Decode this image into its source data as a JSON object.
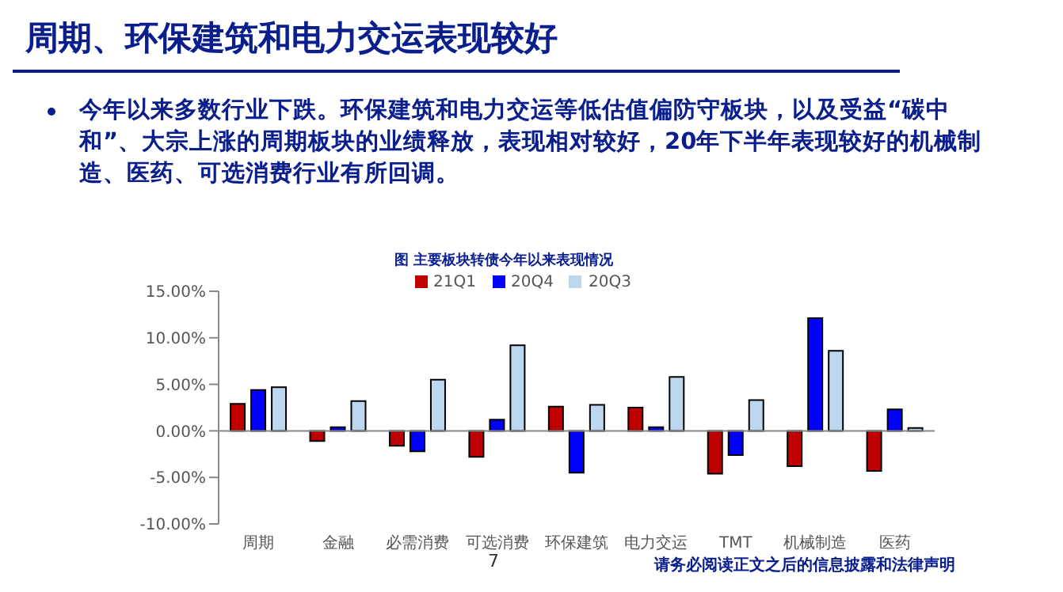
{
  "chart_data": {
    "type": "bar",
    "title": "周期、环保建筑和电力交运表现较好",
    "subtitle": "图 主要板块转债今年以来表现情况",
    "annotations": [
      "今年以来多数行业下跌。环保建筑和电力交运等低估值偏防守板块，以及受益“碳中和”、大宗上涨的周期板块的业绩释放，表现相对较好，20年下半年表现较好的机械制造、医药、可选消费行业有所回调。",
      "7",
      "请务必阅读正文之后的信息披露和法律声明"
    ],
    "categories": [
      "周期",
      "金融",
      "必需消费",
      "可选消费",
      "环保建筑",
      "电力交运",
      "TMT",
      "机械制造",
      "医药"
    ],
    "series": [
      {
        "name": "21Q1",
        "color": "#c00000",
        "values": [
          2.9,
          -1.1,
          -1.6,
          -2.8,
          2.6,
          2.5,
          -4.6,
          -3.8,
          -4.3
        ]
      },
      {
        "name": "20Q4",
        "color": "#0000ff",
        "values": [
          4.4,
          0.4,
          -2.2,
          1.2,
          -4.5,
          0.4,
          -2.6,
          12.1,
          2.3
        ]
      },
      {
        "name": "20Q3",
        "color": "#bdd7ee",
        "values": [
          4.7,
          3.2,
          5.5,
          9.2,
          2.8,
          5.8,
          3.3,
          8.6,
          0.3
        ]
      }
    ],
    "ylim": [
      -10,
      15
    ],
    "yticks": [
      {
        "value": -10,
        "label": "-10.00%"
      },
      {
        "value": -5,
        "label": "-5.00%"
      },
      {
        "value": 0,
        "label": "0.00%"
      },
      {
        "value": 5,
        "label": "5.00%"
      },
      {
        "value": 10,
        "label": "10.00%"
      },
      {
        "value": 15,
        "label": "15.00%"
      }
    ],
    "ref_lines": [
      {
        "axis": "y",
        "value": 0,
        "color": "#888888"
      }
    ],
    "grid": false,
    "legend": "top"
  }
}
